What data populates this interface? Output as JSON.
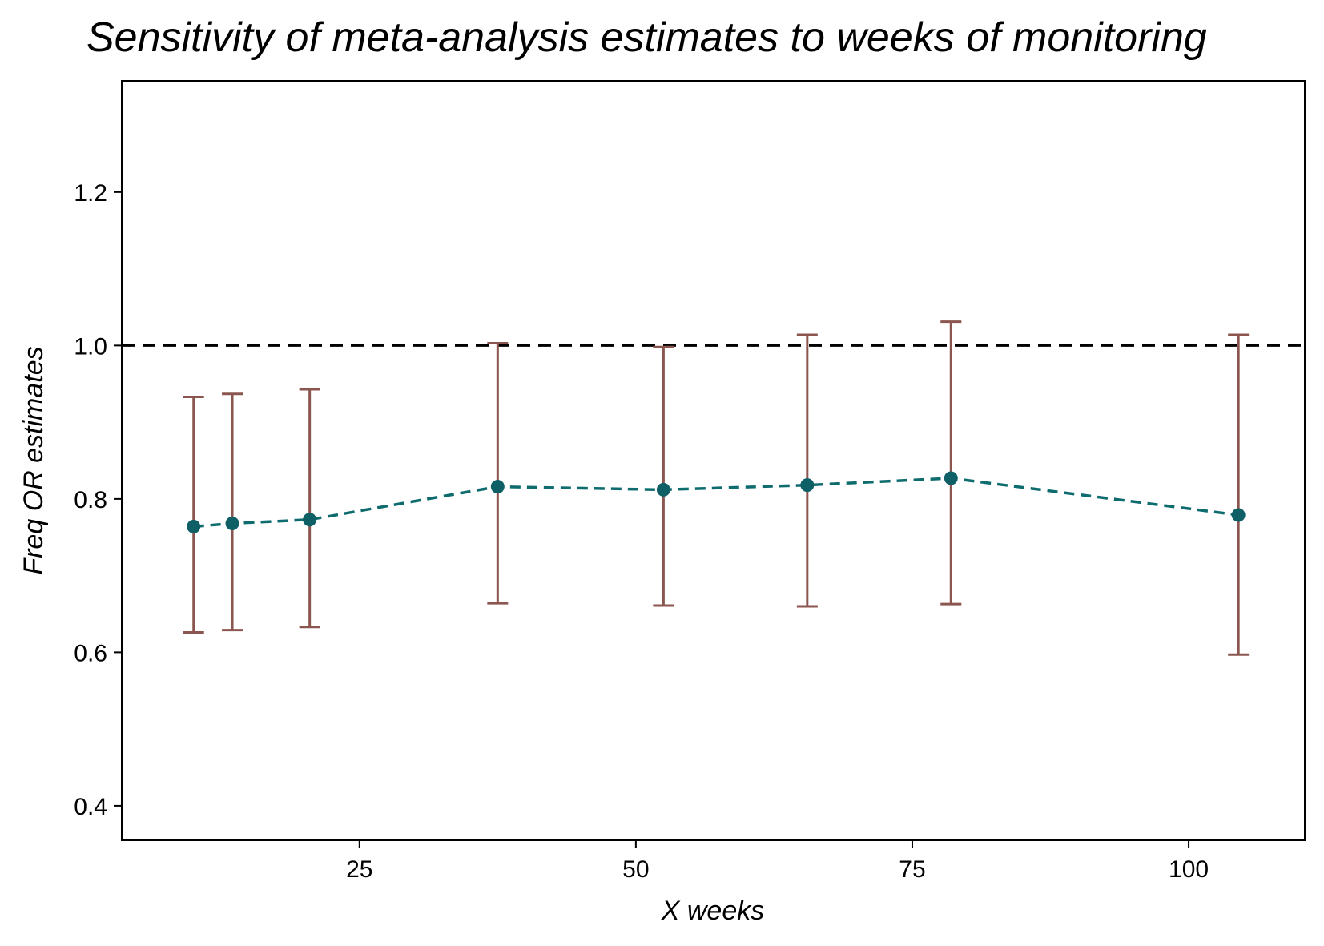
{
  "chart_data": {
    "type": "line",
    "title": "Sensitivity of meta-analysis estimates to weeks of monitoring",
    "xlabel": "X weeks",
    "ylabel": "Freq OR estimates",
    "xlim": [
      3.5,
      110.5
    ],
    "ylim": [
      0.355,
      1.345
    ],
    "xticks": [
      25,
      50,
      75,
      100
    ],
    "yticks": [
      0.4,
      0.6,
      0.8,
      1.0,
      1.2
    ],
    "xtick_labels": [
      "25",
      "50",
      "75",
      "100"
    ],
    "ytick_labels": [
      "0.4",
      "0.6",
      "0.8",
      "1.0",
      "1.2"
    ],
    "reference_line": {
      "y": 1.0,
      "style": "dashed",
      "color": "#000000"
    },
    "grid": false,
    "series": [
      {
        "x": [
          10,
          13.5,
          20.5,
          37.5,
          52.5,
          65.5,
          78.5,
          104.5
        ],
        "y": [
          0.764,
          0.768,
          0.773,
          0.816,
          0.812,
          0.818,
          0.827,
          0.779
        ],
        "lower": [
          0.626,
          0.629,
          0.633,
          0.664,
          0.661,
          0.66,
          0.663,
          0.597
        ],
        "upper": [
          0.933,
          0.937,
          0.943,
          1.003,
          0.998,
          1.014,
          1.031,
          1.014
        ],
        "line_style": "dashed",
        "point_color": "#0e6066",
        "line_color": "#0e6b6e",
        "errorbar_color": "#8b5650"
      }
    ]
  }
}
